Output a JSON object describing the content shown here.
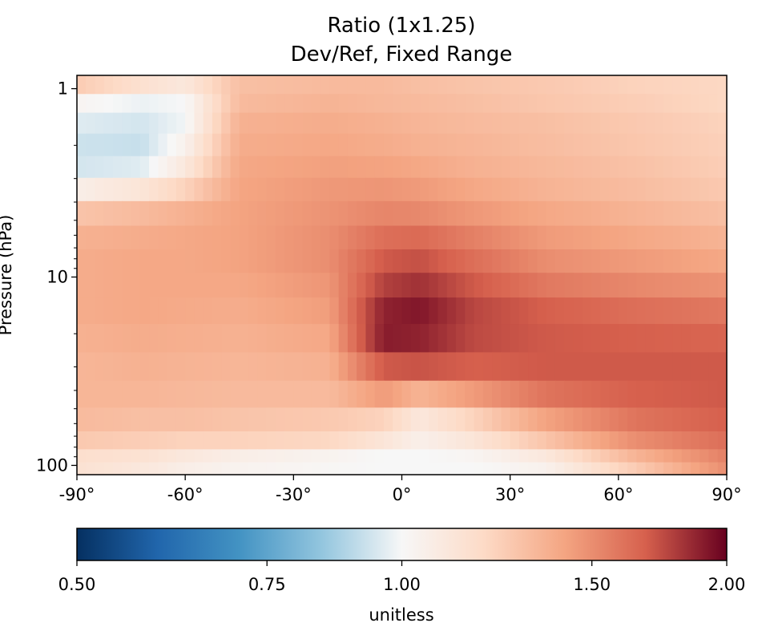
{
  "chart_data": {
    "type": "heatmap",
    "title_lines": [
      "Ratio (1x1.25)",
      "Dev/Ref, Fixed Range"
    ],
    "ylabel": "Pressure (hPa)",
    "y_scale": "log",
    "y_inverted": true,
    "ylim": [
      112,
      0.85
    ],
    "xlim": [
      -90,
      90
    ],
    "x_ticks": [
      -90,
      -60,
      -30,
      0,
      30,
      60,
      90
    ],
    "x_tick_labels": [
      "-90°",
      "-60°",
      "-30°",
      "0°",
      "30°",
      "60°",
      "90°"
    ],
    "y_ticks": [
      1,
      10,
      100
    ],
    "y_tick_labels": [
      "1",
      "10",
      "100"
    ],
    "lat_nodes": [
      -90,
      -72,
      -60,
      -45,
      -20,
      -5,
      5,
      20,
      40,
      65,
      90
    ],
    "pressure_levels": [
      0.95,
      1.2,
      1.5,
      2.0,
      2.6,
      3.4,
      4.6,
      6.2,
      8.2,
      11,
      15,
      21,
      30,
      42,
      58,
      75,
      90,
      103
    ],
    "values": [
      [
        1.25,
        1.15,
        1.1,
        1.3,
        1.32,
        1.32,
        1.3,
        1.28,
        1.26,
        1.22,
        1.2
      ],
      [
        1.02,
        0.98,
        1.0,
        1.32,
        1.35,
        1.33,
        1.32,
        1.3,
        1.27,
        1.24,
        1.2
      ],
      [
        0.96,
        0.94,
        0.99,
        1.36,
        1.38,
        1.36,
        1.34,
        1.32,
        1.3,
        1.26,
        1.22
      ],
      [
        0.93,
        0.92,
        1.04,
        1.38,
        1.4,
        1.38,
        1.36,
        1.34,
        1.31,
        1.27,
        1.23
      ],
      [
        0.94,
        0.96,
        1.1,
        1.4,
        1.43,
        1.42,
        1.4,
        1.36,
        1.33,
        1.29,
        1.24
      ],
      [
        1.06,
        1.12,
        1.22,
        1.41,
        1.46,
        1.47,
        1.45,
        1.4,
        1.35,
        1.31,
        1.26
      ],
      [
        1.28,
        1.32,
        1.36,
        1.42,
        1.48,
        1.53,
        1.52,
        1.46,
        1.4,
        1.35,
        1.3
      ],
      [
        1.36,
        1.38,
        1.4,
        1.42,
        1.5,
        1.62,
        1.64,
        1.55,
        1.45,
        1.4,
        1.35
      ],
      [
        1.38,
        1.4,
        1.4,
        1.42,
        1.5,
        1.7,
        1.73,
        1.62,
        1.5,
        1.45,
        1.4
      ],
      [
        1.38,
        1.4,
        1.4,
        1.4,
        1.47,
        1.78,
        1.83,
        1.7,
        1.58,
        1.52,
        1.48
      ],
      [
        1.38,
        1.4,
        1.39,
        1.38,
        1.44,
        1.88,
        1.92,
        1.76,
        1.68,
        1.62,
        1.58
      ],
      [
        1.36,
        1.38,
        1.37,
        1.36,
        1.4,
        1.9,
        1.88,
        1.75,
        1.7,
        1.68,
        1.66
      ],
      [
        1.34,
        1.36,
        1.35,
        1.34,
        1.36,
        1.7,
        1.72,
        1.68,
        1.7,
        1.7,
        1.7
      ],
      [
        1.34,
        1.34,
        1.33,
        1.32,
        1.32,
        1.45,
        1.35,
        1.45,
        1.6,
        1.68,
        1.7
      ],
      [
        1.32,
        1.3,
        1.3,
        1.28,
        1.26,
        1.22,
        1.1,
        1.22,
        1.42,
        1.6,
        1.68
      ],
      [
        1.26,
        1.24,
        1.22,
        1.22,
        1.2,
        1.12,
        1.05,
        1.12,
        1.28,
        1.5,
        1.62
      ],
      [
        1.16,
        1.14,
        1.1,
        1.06,
        1.03,
        1.0,
        1.0,
        1.02,
        1.1,
        1.35,
        1.55
      ],
      [
        1.14,
        1.1,
        1.06,
        1.03,
        1.01,
        1.0,
        1.0,
        1.0,
        1.04,
        1.25,
        1.5
      ]
    ],
    "colorbar": {
      "colormap": "RdBu_r",
      "vmin": 0.5,
      "vmax": 2.0,
      "scale": "log",
      "ticks": [
        0.5,
        0.75,
        1.0,
        1.5,
        2.0
      ],
      "tick_labels": [
        "0.50",
        "0.75",
        "1.00",
        "1.50",
        "2.00"
      ],
      "label": "unitless"
    }
  }
}
